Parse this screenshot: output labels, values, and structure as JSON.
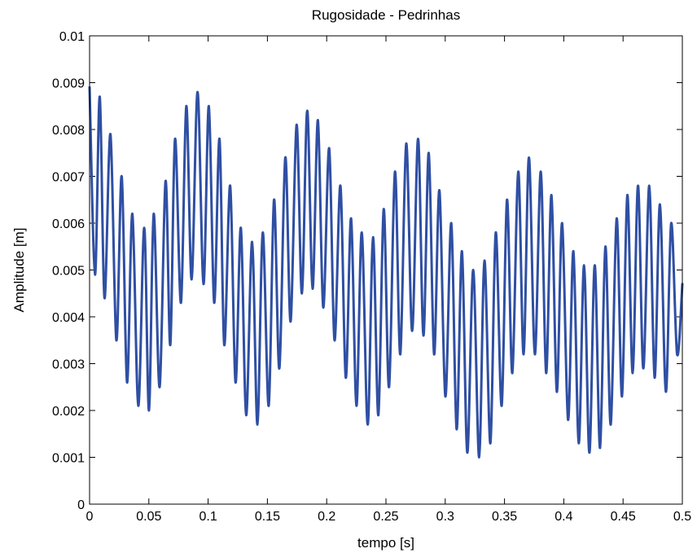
{
  "chart_data": {
    "type": "line",
    "title": "Rugosidade - Pedrinhas",
    "xlabel": "tempo [s]",
    "ylabel": "Amplitude [m]",
    "xlim": [
      0,
      0.5
    ],
    "ylim": [
      0,
      0.01
    ],
    "xticks": [
      0,
      0.05,
      0.1,
      0.15,
      0.2,
      0.25,
      0.3,
      0.35,
      0.4,
      0.45,
      0.5
    ],
    "xtick_labels": [
      "0",
      "0.05",
      "0.1",
      "0.15",
      "0.2",
      "0.25",
      "0.3",
      "0.35",
      "0.4",
      "0.45",
      "0.5"
    ],
    "yticks": [
      0,
      0.001,
      0.002,
      0.003,
      0.004,
      0.005,
      0.006,
      0.007,
      0.008,
      0.009,
      0.01
    ],
    "ytick_labels": [
      "0",
      "0.001",
      "0.002",
      "0.003",
      "0.004",
      "0.005",
      "0.006",
      "0.007",
      "0.008",
      "0.009",
      "0.01"
    ],
    "grid": false,
    "series": [
      {
        "color": "#2f4fa3",
        "x": [
          0,
          0.0046,
          0.0086,
          0.0126,
          0.0176,
          0.0226,
          0.0271,
          0.0316,
          0.0361,
          0.0411,
          0.0461,
          0.0501,
          0.0541,
          0.0591,
          0.0641,
          0.0681,
          0.0721,
          0.0771,
          0.0816,
          0.0861,
          0.0911,
          0.0961,
          0.1006,
          0.1051,
          0.1096,
          0.1136,
          0.1186,
          0.1231,
          0.1276,
          0.1321,
          0.1371,
          0.1416,
          0.1461,
          0.1511,
          0.1556,
          0.1601,
          0.1651,
          0.1696,
          0.1746,
          0.1791,
          0.1836,
          0.1881,
          0.1926,
          0.1971,
          0.2021,
          0.2066,
          0.2116,
          0.2161,
          0.2206,
          0.2251,
          0.2296,
          0.2346,
          0.2391,
          0.2436,
          0.2481,
          0.2526,
          0.2576,
          0.2621,
          0.2671,
          0.2721,
          0.2771,
          0.2816,
          0.2861,
          0.2906,
          0.2951,
          0.3001,
          0.3051,
          0.3096,
          0.3141,
          0.3186,
          0.3236,
          0.3286,
          0.3331,
          0.3381,
          0.3426,
          0.3476,
          0.3521,
          0.3566,
          0.3616,
          0.3661,
          0.3706,
          0.3756,
          0.3806,
          0.3851,
          0.3896,
          0.3941,
          0.3986,
          0.4036,
          0.4081,
          0.4126,
          0.4171,
          0.4216,
          0.4261,
          0.4306,
          0.4351,
          0.4396,
          0.4446,
          0.4491,
          0.4536,
          0.4581,
          0.4626,
          0.4671,
          0.4721,
          0.4766,
          0.4811,
          0.4861,
          0.4906,
          0.4956,
          0.5
        ],
        "y": [
          0.0089,
          0.0049,
          0.0087,
          0.0044,
          0.0079,
          0.0035,
          0.007,
          0.0026,
          0.0062,
          0.0021,
          0.0059,
          0.002,
          0.0062,
          0.0025,
          0.0069,
          0.0034,
          0.0078,
          0.0043,
          0.0085,
          0.0048,
          0.0088,
          0.0047,
          0.0085,
          0.0043,
          0.0078,
          0.0034,
          0.0068,
          0.0026,
          0.0059,
          0.0019,
          0.0056,
          0.0017,
          0.0058,
          0.0021,
          0.0065,
          0.0029,
          0.0074,
          0.0039,
          0.0081,
          0.0045,
          0.0084,
          0.0046,
          0.0082,
          0.0042,
          0.0076,
          0.0035,
          0.0068,
          0.0027,
          0.0061,
          0.0021,
          0.0058,
          0.0017,
          0.0057,
          0.0019,
          0.0063,
          0.0025,
          0.0071,
          0.0032,
          0.0077,
          0.0037,
          0.0078,
          0.0036,
          0.0075,
          0.0032,
          0.0067,
          0.0023,
          0.006,
          0.0016,
          0.0054,
          0.0011,
          0.005,
          0.001,
          0.0052,
          0.0013,
          0.0058,
          0.0021,
          0.0065,
          0.0028,
          0.0071,
          0.0032,
          0.0074,
          0.0032,
          0.0071,
          0.0028,
          0.0066,
          0.0024,
          0.006,
          0.0018,
          0.0054,
          0.0013,
          0.0051,
          0.0011,
          0.0051,
          0.0012,
          0.0055,
          0.0017,
          0.0061,
          0.0023,
          0.0066,
          0.0028,
          0.0068,
          0.0029,
          0.0068,
          0.0027,
          0.0064,
          0.0024,
          0.006,
          0.0032,
          0.0047
        ]
      }
    ]
  }
}
